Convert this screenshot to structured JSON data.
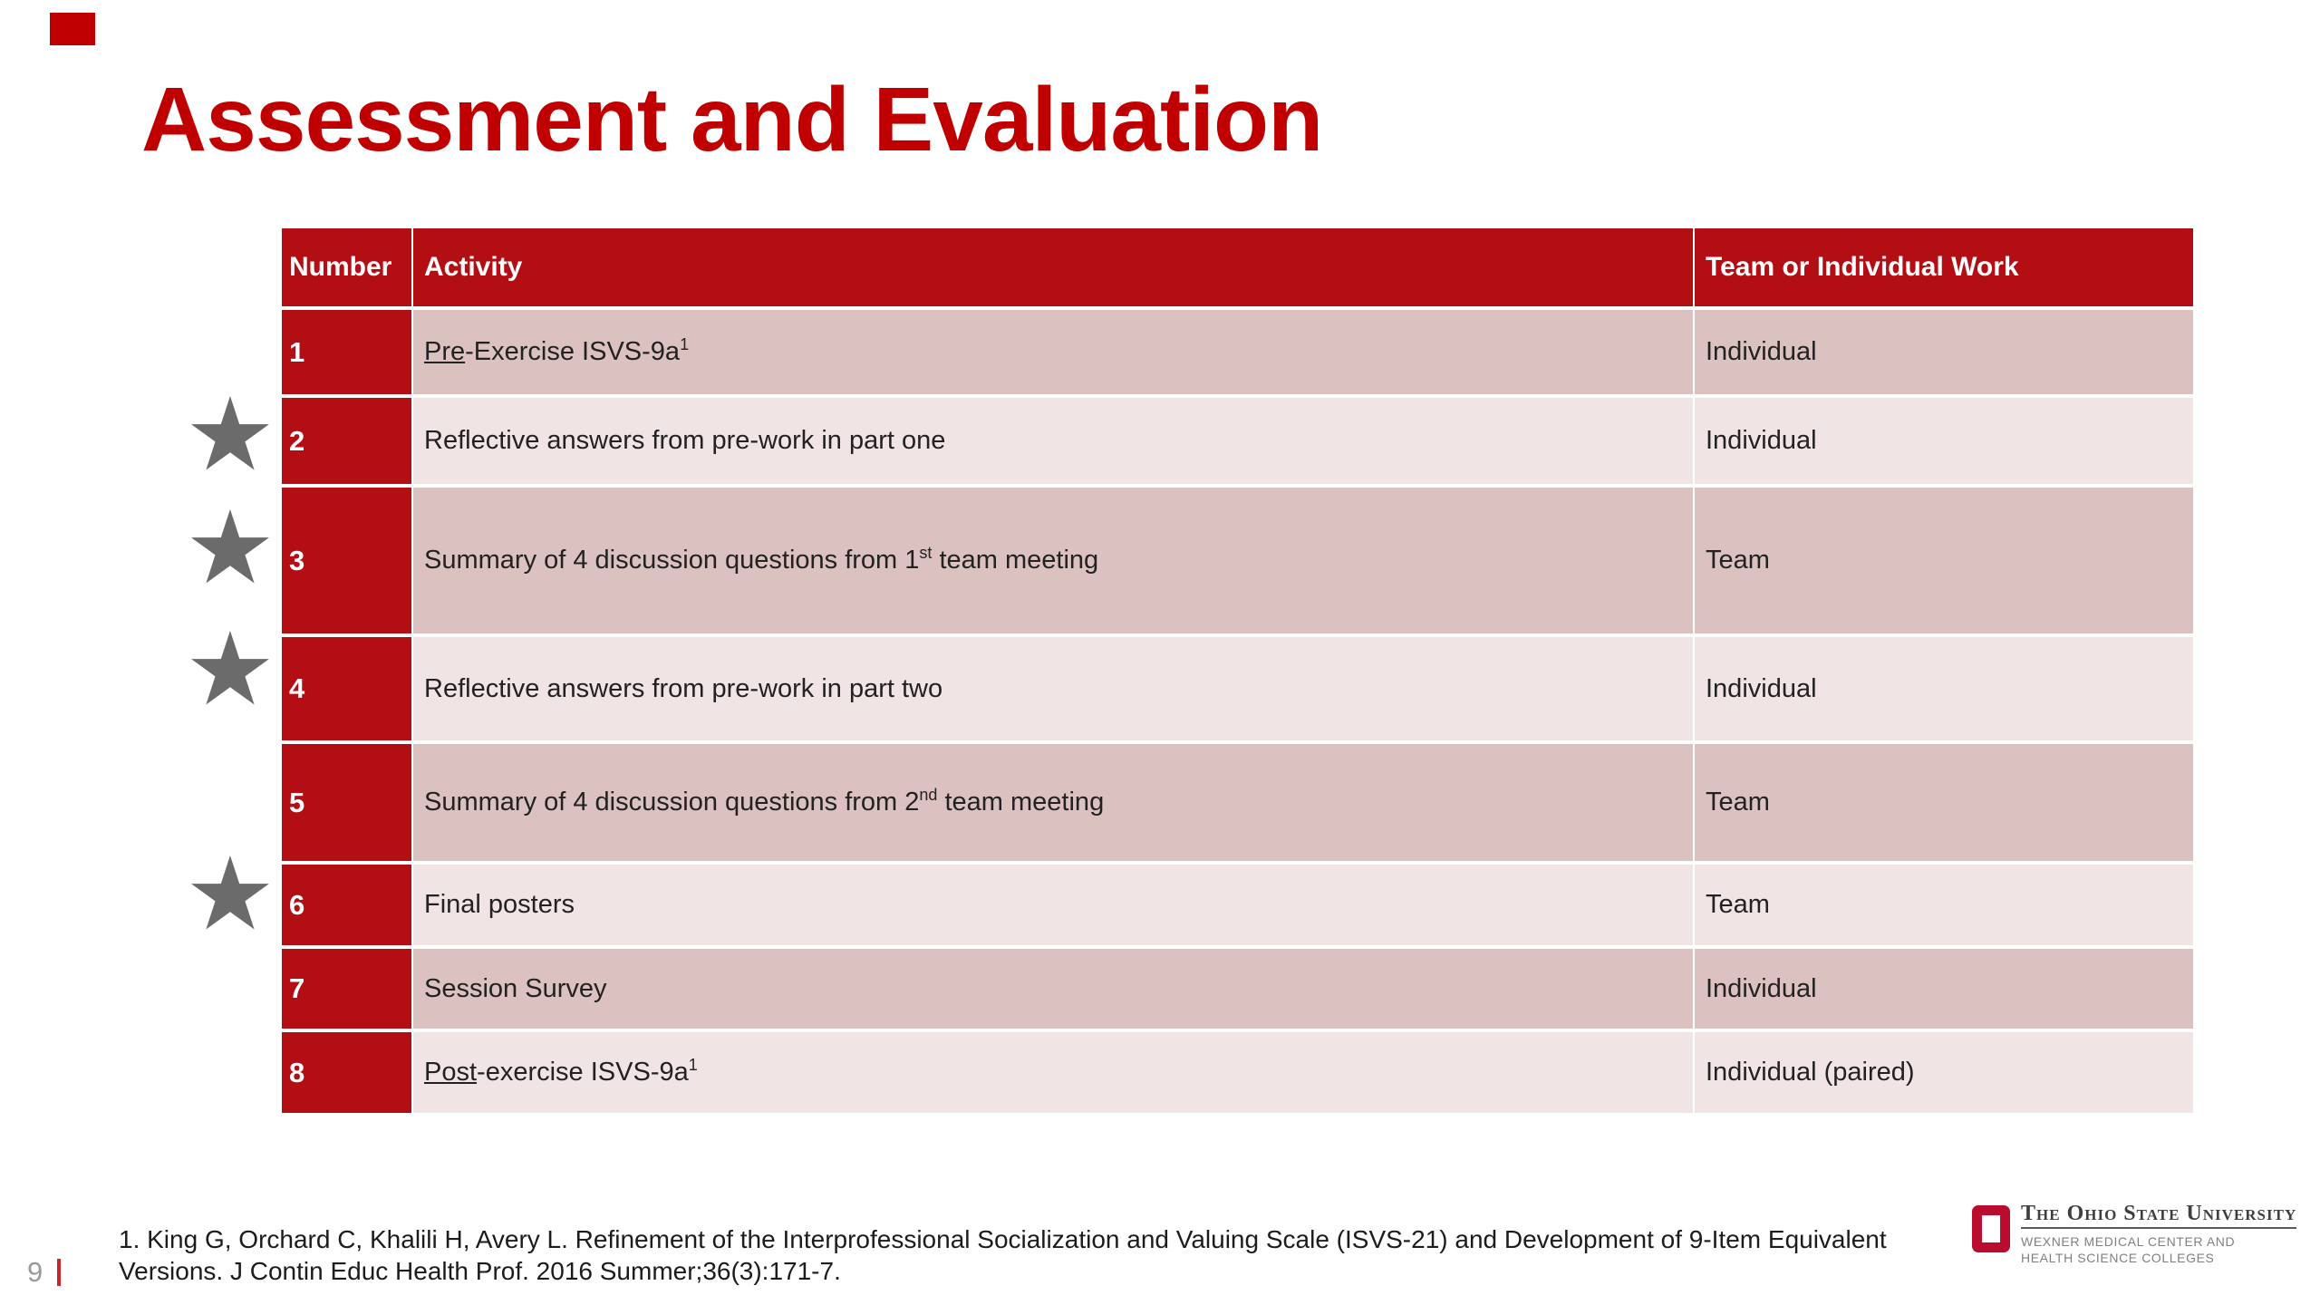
{
  "slide": {
    "title": "Assessment and Evaluation",
    "page_number": "9",
    "footnote_lines": [
      "1. King G, Orchard C, Khalili H, Avery L. Refinement of the Interprofessional Socialization and Valuing Scale (ISVS-21) and Development of 9-Item Equivalent",
      "Versions. J Contin Educ Health Prof. 2016 Summer;36(3):171-7."
    ]
  },
  "table": {
    "headers": [
      "Number",
      "Activity",
      "Team or Individual Work"
    ],
    "rows": [
      {
        "number": "1",
        "activity": [
          {
            "t": "Pre",
            "u": true
          },
          {
            "t": "-Exercise ISVS-9a"
          },
          {
            "t": "1",
            "sup": true
          }
        ],
        "team": "Individual",
        "star": false
      },
      {
        "number": "2",
        "activity": [
          {
            "t": "Reflective answers from pre-work in part one"
          }
        ],
        "team": "Individual",
        "star": true
      },
      {
        "number": "3",
        "activity": [
          {
            "t": "Summary of 4 discussion questions from 1"
          },
          {
            "t": "st",
            "sup": true
          },
          {
            "t": " team meeting"
          }
        ],
        "team": "Team",
        "star": true
      },
      {
        "number": "4",
        "activity": [
          {
            "t": "Reflective answers from pre-work in part two"
          }
        ],
        "team": "Individual",
        "star": true
      },
      {
        "number": "5",
        "activity": [
          {
            "t": "Summary of 4 discussion questions from 2"
          },
          {
            "t": "nd",
            "sup": true
          },
          {
            "t": " team meeting"
          }
        ],
        "team": "Team",
        "star": false
      },
      {
        "number": "6",
        "activity": [
          {
            "t": "Final posters"
          }
        ],
        "team": "Team",
        "star": true
      },
      {
        "number": "7",
        "activity": [
          {
            "t": "Session Survey"
          }
        ],
        "team": "Individual",
        "star": false
      },
      {
        "number": "8",
        "activity": [
          {
            "t": "Post",
            "u": true
          },
          {
            "t": "-exercise ISVS-9a"
          },
          {
            "t": "1",
            "sup": true
          }
        ],
        "team": "Individual (paired)",
        "star": false
      }
    ]
  },
  "icons": {
    "star": "★"
  },
  "logo": {
    "org": "The Ohio State University",
    "sub_line1": "WEXNER MEDICAL CENTER AND",
    "sub_line2": "HEALTH SCIENCE COLLEGES"
  },
  "colors": {
    "title_red": "#c00000",
    "table_scarlet": "#b30e13",
    "row_dark": "#dcc1c1",
    "row_light": "#f1e4e4",
    "star_gray": "#6b6b6b",
    "brand_scarlet": "#ba0c2f",
    "page_bar_red": "#c9252b"
  }
}
